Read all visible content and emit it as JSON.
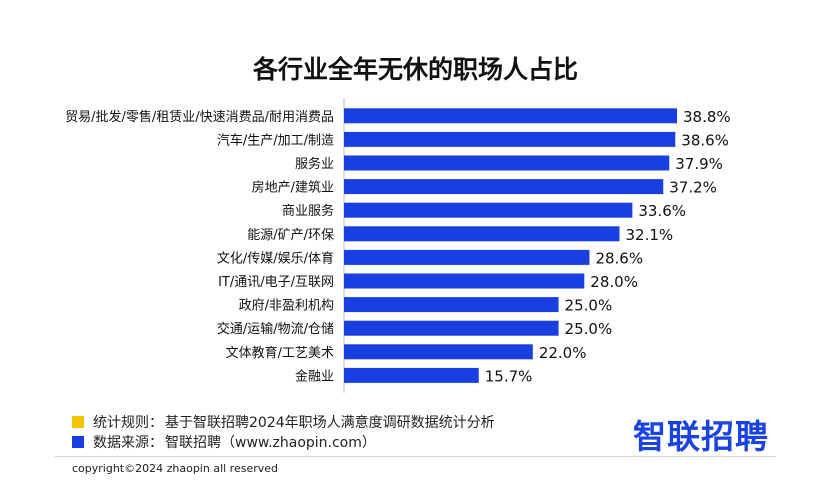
{
  "chart_data": {
    "type": "bar",
    "orientation": "horizontal",
    "title": "各行业全年无休的职场人占比",
    "categories": [
      "贸易/批发/零售/租赁业/快速消费品/耐用消费品",
      "汽车/生产/加工/制造",
      "服务业",
      "房地产/建筑业",
      "商业服务",
      "能源/矿产/环保",
      "文化/传媒/娱乐/体育",
      "IT/通讯/电子/互联网",
      "政府/非盈利机构",
      "交通/运输/物流/仓储",
      "文体教育/工艺美术",
      "金融业"
    ],
    "values": [
      38.8,
      38.6,
      37.9,
      37.2,
      33.6,
      32.1,
      28.6,
      28.0,
      25.0,
      25.0,
      22.0,
      15.7
    ],
    "value_labels": [
      "38.8%",
      "38.6%",
      "37.9%",
      "37.2%",
      "33.6%",
      "32.1%",
      "28.6%",
      "28.0%",
      "25.0%",
      "25.0%",
      "22.0%",
      "15.7%"
    ],
    "unit": "%",
    "bar_color": "#1a3fe0",
    "grid": false,
    "legend": "none"
  },
  "notes": [
    {
      "label": "统计规则：",
      "text": "基于智联招聘2024年职场人满意度调研数据统计分析",
      "color": "#f5c400"
    },
    {
      "label": "数据来源：",
      "text": "智联招聘（www.zhaopin.com）",
      "color": "#1a3fe0"
    }
  ],
  "brand": "智联招聘",
  "copyright": "copyright©2024 zhaopin all reserved"
}
